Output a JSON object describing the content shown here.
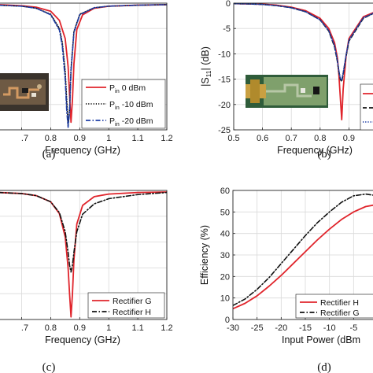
{
  "chart_data": [
    {
      "id": "a",
      "type": "line",
      "caption": "(a)",
      "xlabel": "Frequency (GHz)",
      "ylabel": "",
      "xlim": [
        0.62,
        1.2
      ],
      "ylim": [
        -25,
        0
      ],
      "x_ticks": [
        0.7,
        0.8,
        0.9,
        1,
        1.1,
        1.2
      ],
      "x_tick_labels": [
        ".7",
        "0.8",
        "0.9",
        "1",
        "1.1",
        "1.2"
      ],
      "grid": true,
      "legend": {
        "placement": "lower-right",
        "entries": [
          {
            "prefix": "P",
            "sub": "in",
            "text": " 0 dBm",
            "color": "#e0242b",
            "dash": "solid"
          },
          {
            "prefix": "P",
            "sub": "in",
            "text": " -10 dBm",
            "color": "#111111",
            "dash": "dotted"
          },
          {
            "prefix": "P",
            "sub": "in",
            "text": " -20 dBm",
            "color": "#1f3ea6",
            "dash": "dashdot"
          }
        ]
      },
      "series": [
        {
          "name": "Pin 0 dBm",
          "color": "#e0242b",
          "dash": "solid",
          "x": [
            0.62,
            0.7,
            0.75,
            0.8,
            0.83,
            0.85,
            0.86,
            0.865,
            0.87,
            0.875,
            0.88,
            0.89,
            0.91,
            0.95,
            1.0,
            1.1,
            1.2
          ],
          "y": [
            -0.3,
            -0.5,
            -0.8,
            -1.6,
            -3.4,
            -7.0,
            -12.5,
            -18.0,
            -23.5,
            -19.0,
            -12.0,
            -5.2,
            -2.3,
            -1.0,
            -0.6,
            -0.4,
            -0.3
          ]
        },
        {
          "name": "Pin -10 dBm",
          "color": "#111111",
          "dash": "dotted",
          "x": [
            0.62,
            0.7,
            0.75,
            0.8,
            0.83,
            0.84,
            0.85,
            0.855,
            0.86,
            0.865,
            0.87,
            0.88,
            0.9,
            0.95,
            1.0,
            1.1,
            1.2
          ],
          "y": [
            -0.4,
            -0.6,
            -1.0,
            -2.2,
            -5.0,
            -7.8,
            -13.5,
            -19.0,
            -24.0,
            -21.0,
            -13.0,
            -5.6,
            -2.2,
            -0.9,
            -0.6,
            -0.4,
            -0.3
          ]
        },
        {
          "name": "Pin -20 dBm",
          "color": "#1f3ea6",
          "dash": "dashdot",
          "x": [
            0.62,
            0.7,
            0.75,
            0.8,
            0.83,
            0.84,
            0.85,
            0.855,
            0.86,
            0.865,
            0.87,
            0.88,
            0.9,
            0.95,
            1.0,
            1.1,
            1.2
          ],
          "y": [
            -0.4,
            -0.6,
            -1.0,
            -2.3,
            -5.3,
            -8.5,
            -15.0,
            -21.0,
            -24.5,
            -21.5,
            -13.5,
            -5.8,
            -2.3,
            -0.9,
            -0.6,
            -0.4,
            -0.3
          ]
        }
      ]
    },
    {
      "id": "b",
      "type": "line",
      "caption": "(b)",
      "xlabel": "Frequency (GHz)",
      "ylabel": "|S11| (dB)",
      "ylabel_parts": {
        "left": "|S",
        "sub": "11",
        "right": "| (dB)"
      },
      "xlim": [
        0.5,
        1.0
      ],
      "ylim": [
        -25,
        0
      ],
      "x_ticks": [
        0.5,
        0.6,
        0.7,
        0.8,
        0.9
      ],
      "x_tick_labels": [
        "0.5",
        "0.6",
        "0.7",
        "0.8",
        "0.9"
      ],
      "y_ticks": [
        0,
        -5,
        -10,
        -15,
        -20,
        -25
      ],
      "y_tick_labels": [
        "0",
        "-5",
        "-10",
        "-15",
        "-20",
        "-25"
      ],
      "grid": true,
      "legend": {
        "placement": "lower-right (cropped)"
      },
      "series": [
        {
          "color": "#e0242b",
          "dash": "solid",
          "x": [
            0.5,
            0.55,
            0.6,
            0.65,
            0.7,
            0.75,
            0.8,
            0.83,
            0.85,
            0.86,
            0.865,
            0.87,
            0.875,
            0.88,
            0.89,
            0.9,
            0.95,
            1.0
          ],
          "y": [
            -0.1,
            -0.15,
            -0.2,
            -0.4,
            -0.8,
            -1.5,
            -3.0,
            -5.0,
            -7.8,
            -10.8,
            -14.0,
            -18.5,
            -23.0,
            -17.0,
            -10.5,
            -7.0,
            -2.7,
            -1.5
          ]
        },
        {
          "color": "#111111",
          "dash": "dashed",
          "x": [
            0.5,
            0.55,
            0.6,
            0.65,
            0.7,
            0.75,
            0.8,
            0.83,
            0.85,
            0.86,
            0.865,
            0.87,
            0.875,
            0.88,
            0.89,
            0.9,
            0.95,
            1.0
          ],
          "y": [
            -0.1,
            -0.15,
            -0.25,
            -0.5,
            -0.9,
            -1.7,
            -3.3,
            -5.5,
            -8.6,
            -11.5,
            -13.5,
            -15.0,
            -15.5,
            -14.0,
            -10.5,
            -7.5,
            -3.0,
            -1.6
          ]
        },
        {
          "color": "#1f3ea6",
          "dash": "dotted",
          "x": [
            0.5,
            0.55,
            0.6,
            0.65,
            0.7,
            0.75,
            0.8,
            0.83,
            0.85,
            0.86,
            0.865,
            0.87,
            0.875,
            0.88,
            0.89,
            0.9,
            0.95,
            1.0
          ],
          "y": [
            -0.1,
            -0.15,
            -0.25,
            -0.5,
            -0.9,
            -1.7,
            -3.3,
            -5.4,
            -8.4,
            -11.3,
            -13.3,
            -14.8,
            -15.2,
            -13.8,
            -10.3,
            -7.3,
            -2.9,
            -1.6
          ]
        }
      ]
    },
    {
      "id": "c",
      "type": "line",
      "caption": "(c)",
      "xlabel": "Frequency (GHz)",
      "ylabel": "",
      "xlim": [
        0.62,
        1.2
      ],
      "ylim": [
        -25,
        0
      ],
      "x_ticks": [
        0.7,
        0.8,
        0.9,
        1,
        1.1,
        1.2
      ],
      "x_tick_labels": [
        ".7",
        "0.8",
        "0.9",
        "1",
        "1.1",
        "1.2"
      ],
      "grid": true,
      "legend": {
        "placement": "lower-right",
        "entries": [
          {
            "text": "Rectifier G",
            "color": "#e0242b",
            "dash": "solid"
          },
          {
            "text": "Rectifier H",
            "color": "#111111",
            "dash": "dashdot"
          }
        ]
      },
      "series": [
        {
          "name": "Rectifier G",
          "color": "#e0242b",
          "dash": "solid",
          "x": [
            0.62,
            0.7,
            0.75,
            0.8,
            0.83,
            0.85,
            0.86,
            0.865,
            0.87,
            0.875,
            0.88,
            0.89,
            0.91,
            0.95,
            1.0,
            1.1,
            1.2
          ],
          "y": [
            -0.4,
            -0.6,
            -1.0,
            -2.2,
            -4.5,
            -9.0,
            -15.0,
            -20.0,
            -24.5,
            -20.0,
            -13.5,
            -6.5,
            -2.9,
            -1.2,
            -0.7,
            -0.4,
            -0.3
          ]
        },
        {
          "name": "Rectifier H",
          "color": "#111111",
          "dash": "dashdot",
          "x": [
            0.62,
            0.7,
            0.75,
            0.8,
            0.83,
            0.85,
            0.86,
            0.865,
            0.87,
            0.875,
            0.88,
            0.89,
            0.91,
            0.95,
            1.0,
            1.1,
            1.2
          ],
          "y": [
            -0.4,
            -0.6,
            -1.0,
            -2.2,
            -4.3,
            -8.0,
            -12.0,
            -14.5,
            -15.8,
            -14.5,
            -12.0,
            -8.0,
            -4.6,
            -2.6,
            -1.6,
            -0.8,
            -0.4
          ]
        }
      ]
    },
    {
      "id": "d",
      "type": "line",
      "caption": "(d)",
      "xlabel": "Input Power (dBm)",
      "xlabel_visible": "Input Power (dBm",
      "ylabel": "Efficiency (%)",
      "xlim": [
        -30,
        0
      ],
      "ylim": [
        0,
        60
      ],
      "x_ticks": [
        -30,
        -25,
        -20,
        -15,
        -10,
        -5
      ],
      "x_tick_labels": [
        "-30",
        "-25",
        "-20",
        "-15",
        "-10",
        "-5"
      ],
      "y_ticks": [
        0,
        10,
        20,
        30,
        40,
        50,
        60
      ],
      "y_tick_labels": [
        "0",
        "10",
        "20",
        "30",
        "40",
        "50",
        "60"
      ],
      "grid": true,
      "legend": {
        "placement": "lower-right",
        "entries": [
          {
            "text": "Rectifier H",
            "color": "#e0242b",
            "dash": "solid"
          },
          {
            "text": "Rectifier G",
            "color": "#111111",
            "dash": "dashdot"
          }
        ]
      },
      "series": [
        {
          "name": "Rectifier H",
          "color": "#e0242b",
          "dash": "solid",
          "x": [
            -30,
            -27.5,
            -25,
            -22.5,
            -20,
            -17.5,
            -15,
            -12.5,
            -10,
            -7.5,
            -5,
            -2.5,
            0
          ],
          "y": [
            5,
            7.5,
            11,
            15.5,
            20.5,
            26,
            31.5,
            37,
            42,
            46.5,
            50,
            52.5,
            53.5
          ]
        },
        {
          "name": "Rectifier G",
          "color": "#111111",
          "dash": "dashdot",
          "x": [
            -30,
            -27.5,
            -25,
            -22.5,
            -20,
            -17.5,
            -15,
            -12.5,
            -10,
            -7.5,
            -5,
            -2.5,
            0
          ],
          "y": [
            6.5,
            9.5,
            14,
            19.5,
            26,
            32.5,
            39,
            45,
            50,
            54.5,
            57.5,
            58.3,
            57.5
          ]
        }
      ]
    }
  ]
}
